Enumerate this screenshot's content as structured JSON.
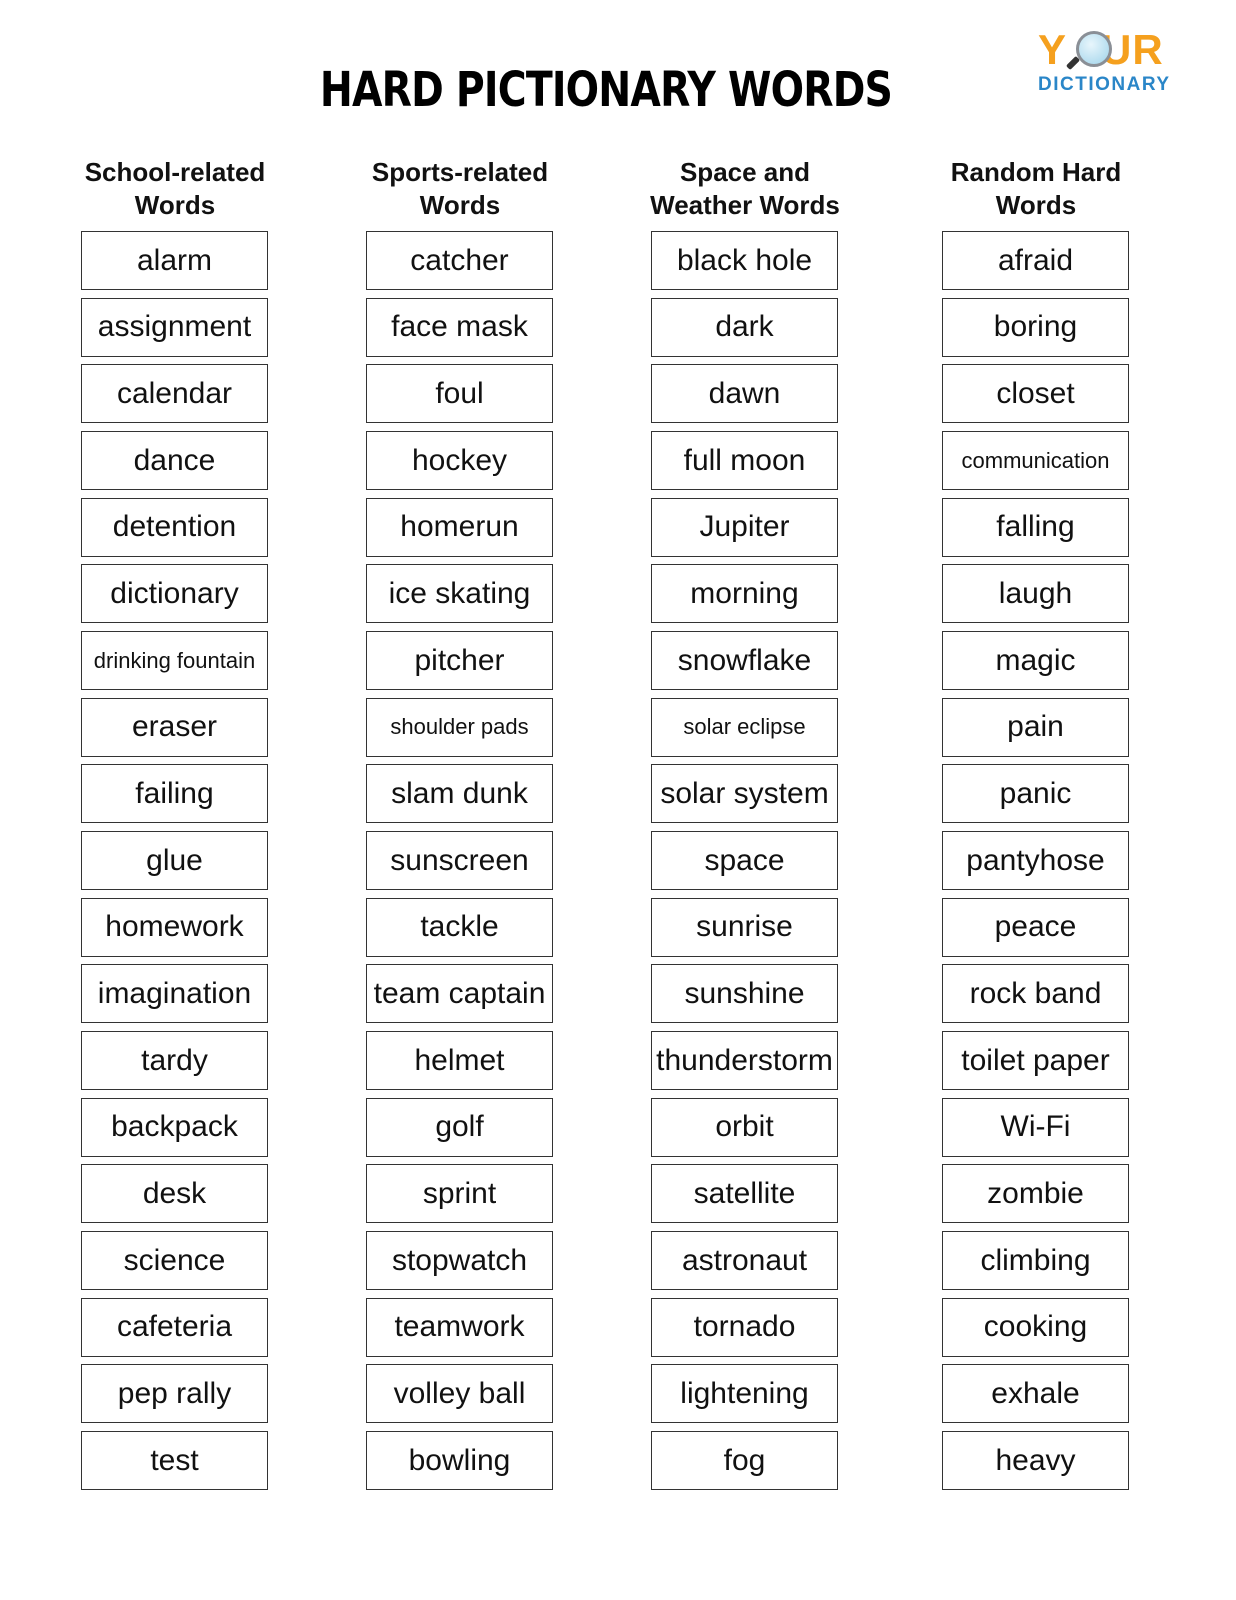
{
  "title": "HARD PICTIONARY WORDS",
  "logo": {
    "line1": "YOUR",
    "line2": "DICTIONARY",
    "colors": {
      "your": "#f5a01e",
      "dictionary": "#2a86c8"
    }
  },
  "columns": [
    {
      "header_line1": "School-related",
      "header_line2": "Words",
      "words": [
        "alarm",
        "assignment",
        "calendar",
        "dance",
        "detention",
        "dictionary",
        "drinking fountain",
        "eraser",
        "failing",
        "glue",
        "homework",
        "imagination",
        "tardy",
        "backpack",
        "desk",
        "science",
        "cafeteria",
        "pep rally",
        "test"
      ]
    },
    {
      "header_line1": "Sports-related",
      "header_line2": "Words",
      "words": [
        "catcher",
        "face mask",
        "foul",
        "hockey",
        "homerun",
        "ice skating",
        "pitcher",
        "shoulder pads",
        "slam dunk",
        "sunscreen",
        "tackle",
        "team captain",
        "helmet",
        "golf",
        "sprint",
        "stopwatch",
        "teamwork",
        "volley ball",
        "bowling"
      ]
    },
    {
      "header_line1": "Space and",
      "header_line2": "Weather Words",
      "words": [
        "black hole",
        "dark",
        "dawn",
        "full moon",
        "Jupiter",
        "morning",
        "snowflake",
        "solar eclipse",
        "solar system",
        "space",
        "sunrise",
        "sunshine",
        "thunderstorm",
        "orbit",
        "satellite",
        "astronaut",
        "tornado",
        "lightening",
        "fog"
      ]
    },
    {
      "header_line1": "Random Hard",
      "header_line2": "Words",
      "words": [
        "afraid",
        "boring",
        "closet",
        "communication",
        "falling",
        "laugh",
        "magic",
        "pain",
        "panic",
        "pantyhose",
        "peace",
        "rock band",
        "toilet paper",
        "Wi-Fi",
        "zombie",
        "climbing",
        "cooking",
        "exhale",
        "heavy"
      ]
    }
  ]
}
